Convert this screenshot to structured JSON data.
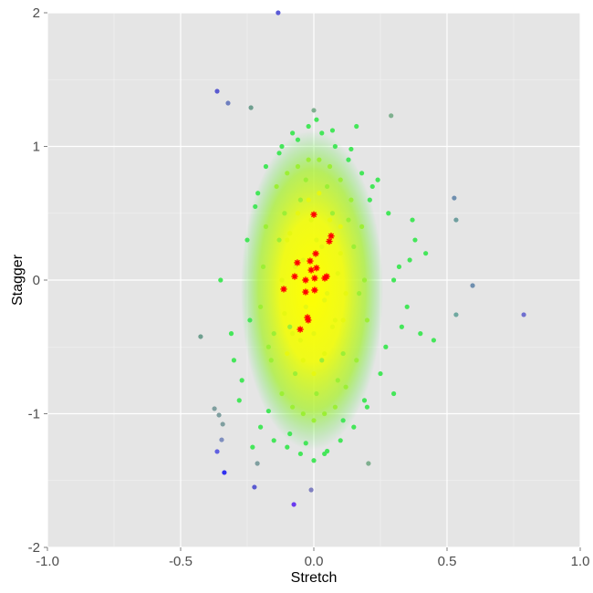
{
  "chart_data": {
    "type": "scatter",
    "xlabel": "Stretch",
    "ylabel": "Stagger",
    "xlim": [
      -1,
      1
    ],
    "ylim": [
      -2,
      2
    ],
    "xticks": [
      {
        "value": -1,
        "label": "-1.0"
      },
      {
        "value": -0.5,
        "label": "-0.5"
      },
      {
        "value": 0,
        "label": "0.0"
      },
      {
        "value": 0.5,
        "label": "0.5"
      },
      {
        "value": 1,
        "label": "1.0"
      }
    ],
    "yticks": [
      -2,
      -1,
      0,
      1,
      2
    ],
    "xminor": [
      -0.75,
      -0.25,
      0.25,
      0.75
    ],
    "yminor": [
      -1.5,
      -0.5,
      0.5,
      1.5
    ],
    "grid": true,
    "panel_color": "#e5e5e5",
    "series": [
      {
        "color": "#45e65a",
        "marker": "circle",
        "x": [
          -0.3,
          -0.28,
          -0.25,
          -0.22,
          -0.2,
          -0.18,
          -0.15,
          -0.12,
          -0.1,
          -0.08,
          -0.05,
          -0.02,
          0.0,
          0.03,
          0.05,
          0.08,
          0.1,
          0.13,
          0.15,
          0.18,
          0.2,
          0.22,
          0.25,
          0.28,
          0.3,
          0.32,
          0.35,
          0.38,
          0.4,
          0.42,
          0.45,
          -0.24,
          -0.21,
          -0.17,
          -0.13,
          -0.09,
          -0.06,
          -0.03,
          0.01,
          0.04,
          0.07,
          0.11,
          0.14,
          0.19,
          0.24,
          0.27,
          0.33,
          0.36,
          -0.27,
          0.21,
          -0.35,
          -0.31,
          0.37,
          0.3,
          -0.23,
          0.16
        ],
        "values": [
          -0.6,
          -0.9,
          0.3,
          0.55,
          -1.1,
          0.85,
          -1.2,
          1.0,
          -1.25,
          1.1,
          -1.3,
          1.15,
          -1.35,
          1.1,
          -1.28,
          1.0,
          -1.2,
          0.9,
          -1.1,
          0.8,
          -0.95,
          0.7,
          -0.7,
          0.5,
          0.0,
          0.1,
          -0.2,
          0.3,
          -0.4,
          0.2,
          -0.45,
          -0.3,
          0.65,
          -0.98,
          0.95,
          -1.15,
          1.05,
          -1.22,
          1.2,
          -1.3,
          1.12,
          -1.05,
          0.98,
          -0.9,
          0.75,
          -0.5,
          -0.35,
          0.15,
          -0.75,
          0.6,
          0.0,
          -0.4,
          0.45,
          -0.85,
          -1.25,
          1.15
        ]
      },
      {
        "color": "#9cef35",
        "marker": "circle",
        "x": [
          -0.2,
          -0.18,
          -0.16,
          -0.14,
          -0.12,
          -0.1,
          -0.08,
          -0.06,
          -0.04,
          -0.02,
          0.0,
          0.02,
          0.04,
          0.06,
          0.08,
          0.1,
          0.12,
          0.14,
          0.16,
          0.18,
          0.2,
          -0.19,
          -0.15,
          -0.11,
          -0.07,
          -0.03,
          0.01,
          0.05,
          0.09,
          0.13,
          0.17,
          -0.17,
          0.15,
          -0.13,
          0.11,
          -0.09,
          0.07,
          -0.05,
          0.03,
          0.19
        ],
        "values": [
          -0.2,
          0.4,
          -0.6,
          0.7,
          -0.85,
          0.8,
          -0.95,
          0.85,
          -1.0,
          0.9,
          -1.05,
          0.9,
          -1.0,
          0.85,
          -0.95,
          0.75,
          -0.8,
          0.6,
          -0.6,
          0.4,
          -0.3,
          0.1,
          -0.4,
          0.5,
          -0.7,
          0.75,
          -0.85,
          0.7,
          -0.75,
          0.45,
          -0.1,
          -0.5,
          0.25,
          0.3,
          -0.55,
          -0.35,
          0.5,
          0.6,
          -0.6,
          0.0
        ]
      },
      {
        "color": "#e6f812",
        "marker": "circle",
        "x": [
          -0.12,
          -0.1,
          -0.08,
          -0.06,
          -0.04,
          -0.02,
          0.0,
          0.02,
          0.04,
          0.06,
          0.08,
          0.1,
          0.12,
          -0.11,
          -0.07,
          -0.03,
          0.01,
          0.05,
          0.09,
          -0.09,
          -0.05,
          -0.01,
          0.03,
          0.07,
          0.11,
          -0.1,
          0.0,
          0.1,
          -0.04,
          0.04
        ],
        "values": [
          0.0,
          0.3,
          -0.4,
          0.5,
          -0.6,
          0.6,
          -0.7,
          0.65,
          -0.55,
          0.45,
          -0.3,
          0.2,
          -0.1,
          -0.25,
          0.1,
          -0.2,
          0.3,
          -0.1,
          0.05,
          0.35,
          -0.45,
          0.45,
          0.25,
          -0.35,
          -0.3,
          -0.55,
          -0.4,
          0.4,
          0.15,
          -0.15
        ]
      },
      {
        "marker": "circle",
        "colors": [
          "#5b5bd6",
          "#5a5ad0",
          "#6f7fbf",
          "#6f9f8f",
          "#6f8faf",
          "#6f9f9f",
          "#6f8faf",
          "#6f6fcf",
          "#6fa8a0",
          "#6f9f8f",
          "#6060e0",
          "#3030f0",
          "#5a5ad0",
          "#6a3aef",
          "#8080c0",
          "#7faf8f",
          "#7f9fa0",
          "#7f8fbf",
          "#7f9fa0",
          "#7f9fa0",
          "#7f9f9f",
          "#7fb08f",
          "#7fb08f"
        ],
        "x": [
          -0.134,
          -0.363,
          -0.322,
          -0.236,
          0.527,
          0.534,
          0.596,
          0.788,
          0.534,
          -0.425,
          -0.363,
          -0.336,
          -0.223,
          -0.075,
          -0.01,
          0.205,
          -0.212,
          -0.346,
          -0.342,
          -0.356,
          -0.373,
          0.0,
          0.29
        ],
        "values": [
          2.0,
          1.413,
          1.324,
          1.29,
          0.614,
          0.45,
          -0.041,
          -0.259,
          -0.259,
          -0.423,
          -1.283,
          -1.44,
          -1.549,
          -1.679,
          -1.57,
          -1.372,
          -1.372,
          -1.195,
          -1.078,
          -1.01,
          -0.962,
          1.27,
          1.23
        ]
      },
      {
        "color": "#ff0000",
        "marker": "star",
        "x": [
          0.0,
          0.007,
          0.065,
          0.058,
          -0.062,
          -0.014,
          0.01,
          -0.01,
          -0.072,
          -0.031,
          0.003,
          0.041,
          0.048,
          -0.113,
          -0.031,
          0.003,
          -0.024,
          -0.021,
          -0.051
        ],
        "values": [
          0.49,
          0.198,
          0.33,
          0.29,
          0.13,
          0.143,
          0.09,
          0.075,
          0.027,
          0.0,
          0.014,
          0.014,
          0.027,
          -0.068,
          -0.089,
          -0.075,
          -0.28,
          -0.3,
          -0.369
        ]
      }
    ]
  }
}
